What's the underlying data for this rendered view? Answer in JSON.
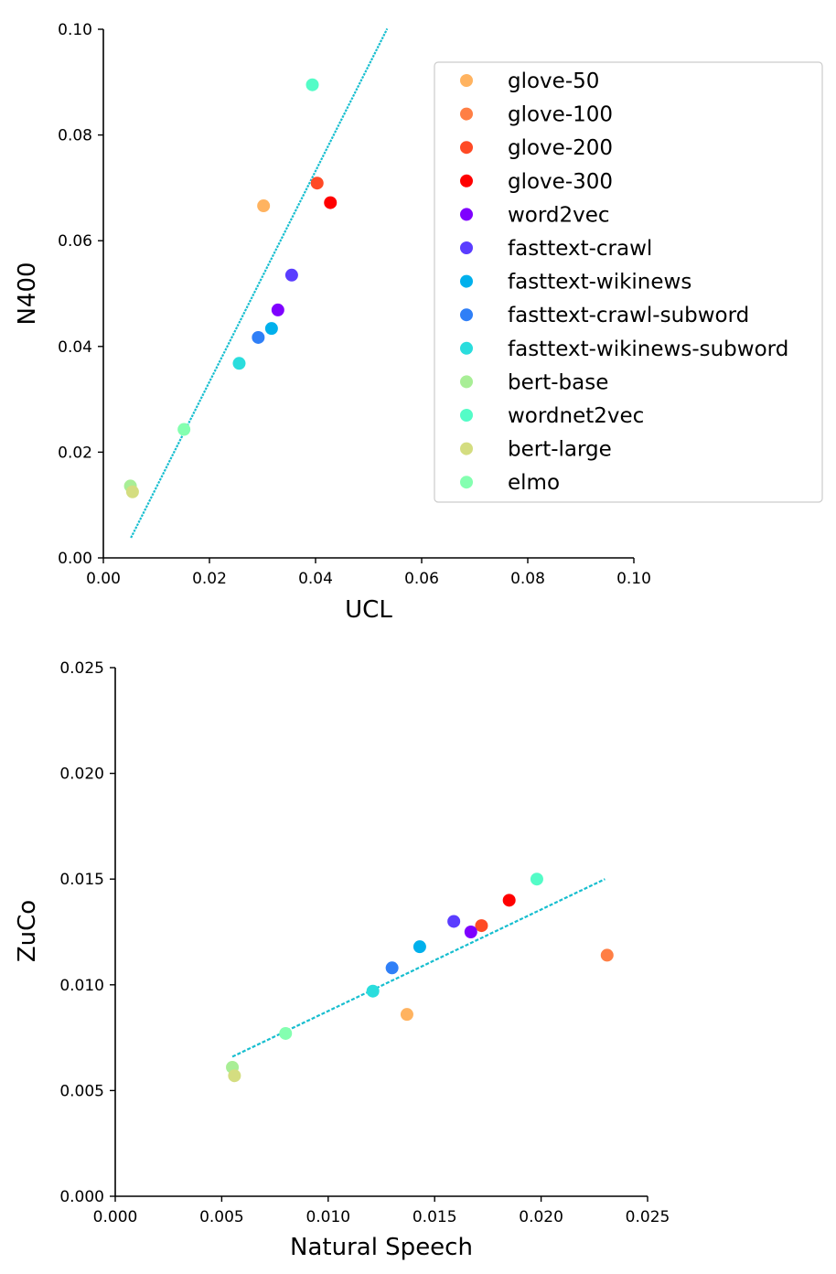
{
  "chart_data": [
    {
      "type": "scatter",
      "xlabel": "UCL",
      "ylabel": "N400",
      "xlim": [
        0.0,
        0.1
      ],
      "ylim": [
        0.0,
        0.1
      ],
      "xticks": [
        "0.00",
        "0.02",
        "0.04",
        "0.06",
        "0.08",
        "0.10"
      ],
      "yticks": [
        "0.00",
        "0.02",
        "0.04",
        "0.06",
        "0.08",
        "0.10"
      ],
      "grid": false,
      "legend_position": "right",
      "points": [
        {
          "name": "glove-50",
          "x": 0.0302,
          "y": 0.0666,
          "color": "#ffb360"
        },
        {
          "name": "glove-100",
          "x": null,
          "y": null,
          "color": "#ff7f45"
        },
        {
          "name": "glove-200",
          "x": 0.0403,
          "y": 0.0709,
          "color": "#ff4a25"
        },
        {
          "name": "glove-300",
          "x": 0.0428,
          "y": 0.0672,
          "color": "#ff0000"
        },
        {
          "name": "word2vec",
          "x": 0.0329,
          "y": 0.0469,
          "color": "#7f00ff"
        },
        {
          "name": "fasttext-crawl",
          "x": 0.0355,
          "y": 0.0535,
          "color": "#5a3dff"
        },
        {
          "name": "fasttext-wikinews",
          "x": 0.0317,
          "y": 0.0434,
          "color": "#00b0ec"
        },
        {
          "name": "fasttext-crawl-subword",
          "x": 0.0292,
          "y": 0.0417,
          "color": "#2f7ff7"
        },
        {
          "name": "fasttext-wikinews-subword",
          "x": 0.0256,
          "y": 0.0368,
          "color": "#2adddd"
        },
        {
          "name": "bert-base",
          "x": 0.0051,
          "y": 0.0136,
          "color": "#a8ee96"
        },
        {
          "name": "wordnet2vec",
          "x": 0.0394,
          "y": 0.0895,
          "color": "#54fcc7"
        },
        {
          "name": "bert-large",
          "x": 0.0055,
          "y": 0.0125,
          "color": "#d4dd80"
        },
        {
          "name": "elmo",
          "x": 0.0152,
          "y": 0.0243,
          "color": "#84ffb0"
        }
      ],
      "trendline": {
        "x": [
          0.0052,
          0.0535
        ],
        "y": [
          0.0038,
          0.1001
        ],
        "color": "#17becf",
        "style": "dotted"
      }
    },
    {
      "type": "scatter",
      "xlabel": "Natural Speech",
      "ylabel": "ZuCo",
      "xlim": [
        0.0,
        0.025
      ],
      "ylim": [
        0.0,
        0.025
      ],
      "xticks": [
        "0.000",
        "0.005",
        "0.010",
        "0.015",
        "0.020",
        "0.025"
      ],
      "yticks": [
        "0.000",
        "0.005",
        "0.010",
        "0.015",
        "0.020",
        "0.025"
      ],
      "grid": false,
      "points": [
        {
          "name": "glove-50",
          "x": 0.0137,
          "y": 0.0086,
          "color": "#ffb360"
        },
        {
          "name": "glove-100",
          "x": 0.0231,
          "y": 0.0114,
          "color": "#ff7f45"
        },
        {
          "name": "glove-200",
          "x": 0.0172,
          "y": 0.0128,
          "color": "#ff4a25"
        },
        {
          "name": "glove-300",
          "x": 0.0185,
          "y": 0.014,
          "color": "#ff0000"
        },
        {
          "name": "word2vec",
          "x": 0.0167,
          "y": 0.0125,
          "color": "#7f00ff"
        },
        {
          "name": "fasttext-crawl",
          "x": 0.0159,
          "y": 0.013,
          "color": "#5a3dff"
        },
        {
          "name": "fasttext-wikinews",
          "x": 0.0143,
          "y": 0.0118,
          "color": "#00b0ec"
        },
        {
          "name": "fasttext-crawl-subword",
          "x": 0.013,
          "y": 0.0108,
          "color": "#2f7ff7"
        },
        {
          "name": "fasttext-wikinews-subword",
          "x": 0.0121,
          "y": 0.0097,
          "color": "#2adddd"
        },
        {
          "name": "bert-base",
          "x": 0.0055,
          "y": 0.0061,
          "color": "#a8ee96"
        },
        {
          "name": "wordnet2vec",
          "x": 0.0198,
          "y": 0.015,
          "color": "#54fcc7"
        },
        {
          "name": "bert-large",
          "x": 0.0056,
          "y": 0.0057,
          "color": "#d4dd80"
        },
        {
          "name": "elmo",
          "x": 0.008,
          "y": 0.0077,
          "color": "#84ffb0"
        }
      ],
      "trendline": {
        "x": [
          0.0055,
          0.023
        ],
        "y": [
          0.0066,
          0.015
        ],
        "color": "#17becf",
        "style": "dashed"
      }
    }
  ]
}
